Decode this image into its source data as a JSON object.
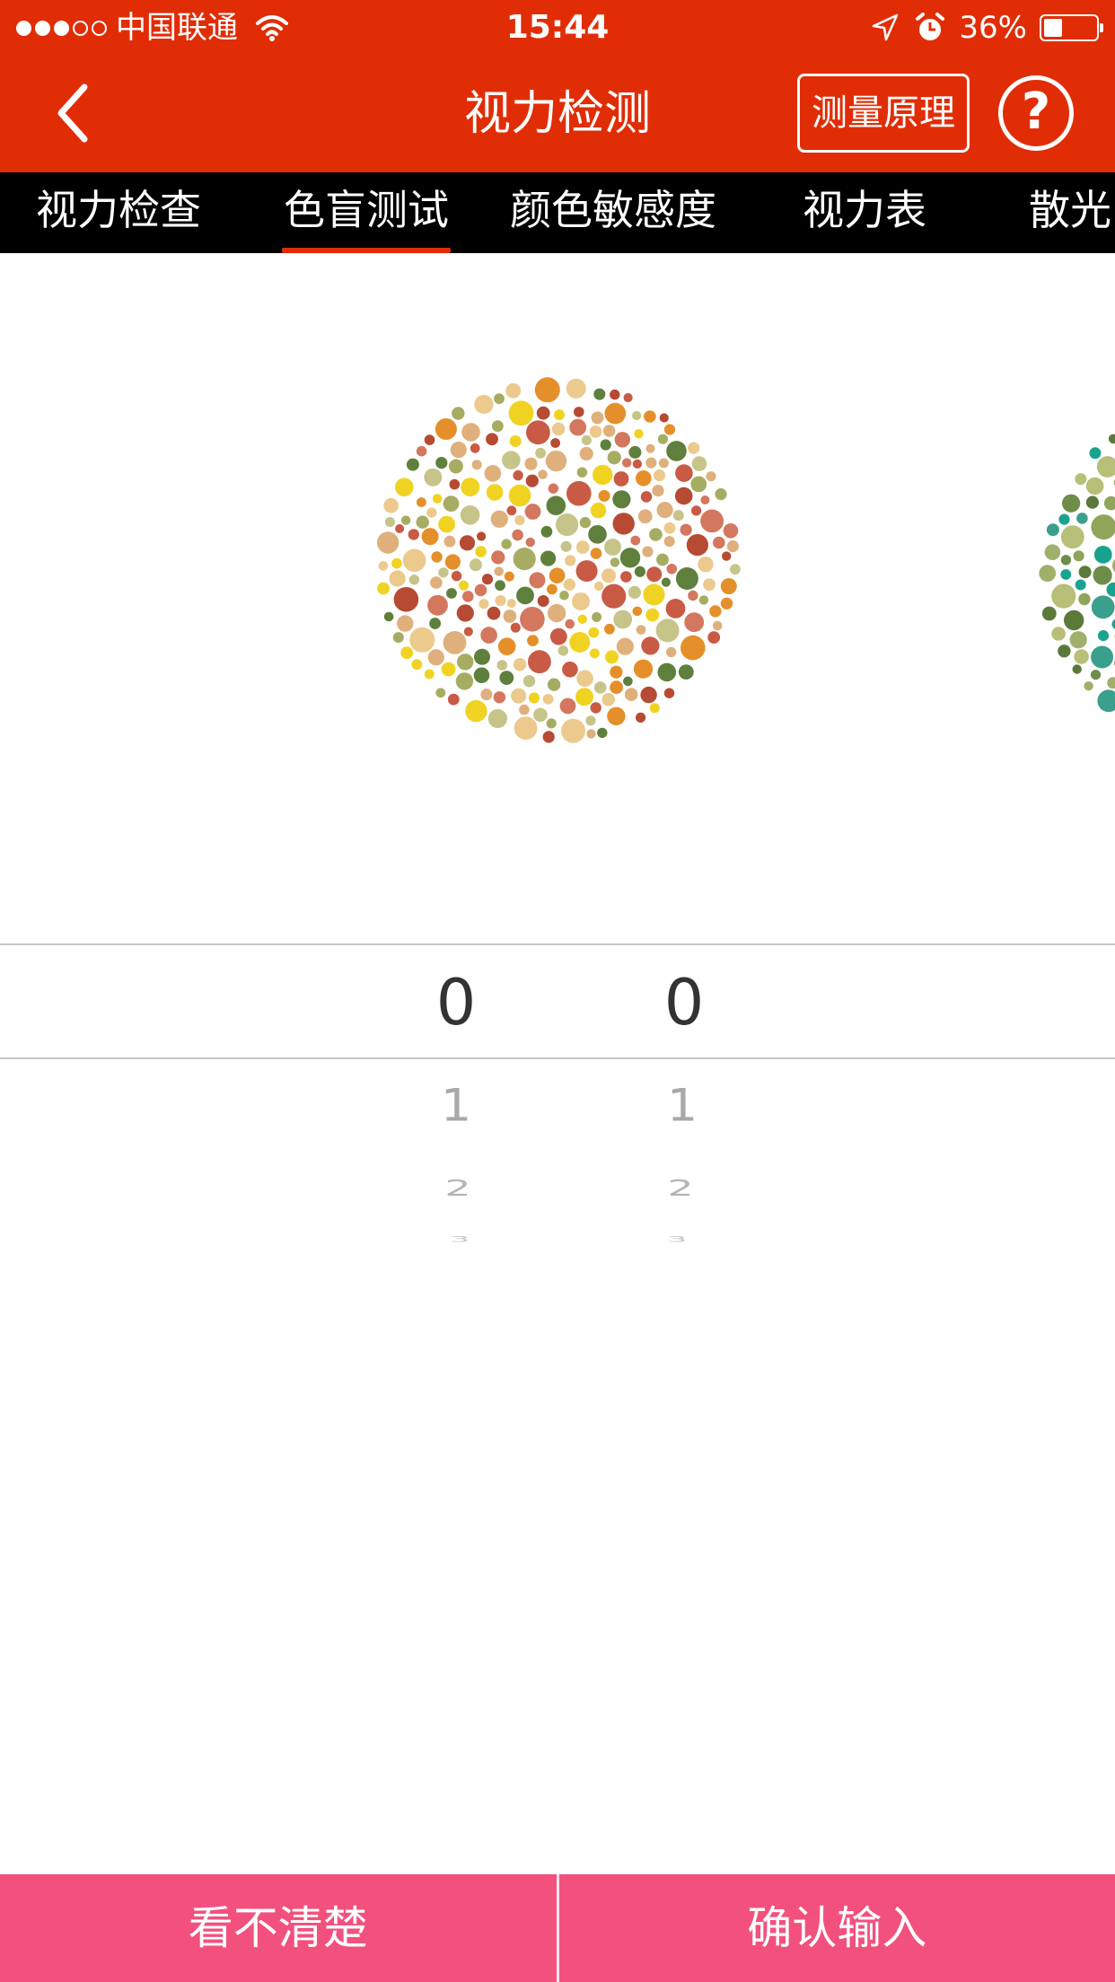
{
  "status_bar": {
    "carrier": "中国联通",
    "signal_total": 5,
    "signal_filled": 3,
    "time": "15:44",
    "battery_percent": "36%",
    "battery_level": 0.36,
    "icons": [
      "wifi-icon",
      "location-arrow-icon",
      "alarm-icon",
      "battery-icon"
    ]
  },
  "nav": {
    "title": "视力检测",
    "principle_button": "测量原理",
    "help_button": "?",
    "icons": [
      "back-chevron-icon",
      "help-icon"
    ]
  },
  "tabs": [
    {
      "label": "视力检查",
      "active": false
    },
    {
      "label": "色盲测试",
      "active": true
    },
    {
      "label": "颜色敏感度",
      "active": false
    },
    {
      "label": "视力表",
      "active": false
    },
    {
      "label": "散光",
      "active": false
    }
  ],
  "plates": {
    "current": {
      "palette": [
        "#b74a32",
        "#d3775e",
        "#dfb07c",
        "#e58f2a",
        "#f0d322",
        "#ecc98c",
        "#c7c48a",
        "#a6ad62",
        "#5f7f3c",
        "#c95a45"
      ]
    },
    "next": {
      "palette": [
        "#5b7a3a",
        "#8fa55a",
        "#b7bf78",
        "#3aa08d",
        "#19a38f",
        "#6e8d4a",
        "#a0b06b"
      ]
    }
  },
  "picker": {
    "columns": [
      {
        "selected": "0",
        "next": [
          "1",
          "2",
          "3"
        ]
      },
      {
        "selected": "0",
        "next": [
          "1",
          "2",
          "3"
        ]
      }
    ]
  },
  "buttons": {
    "unclear": "看不清楚",
    "confirm": "确认输入"
  },
  "colors": {
    "brand_red": "#e12d06",
    "tab_bar": "#000000",
    "tab_indicator": "#e12d06",
    "bottom_button": "#f2517e"
  }
}
